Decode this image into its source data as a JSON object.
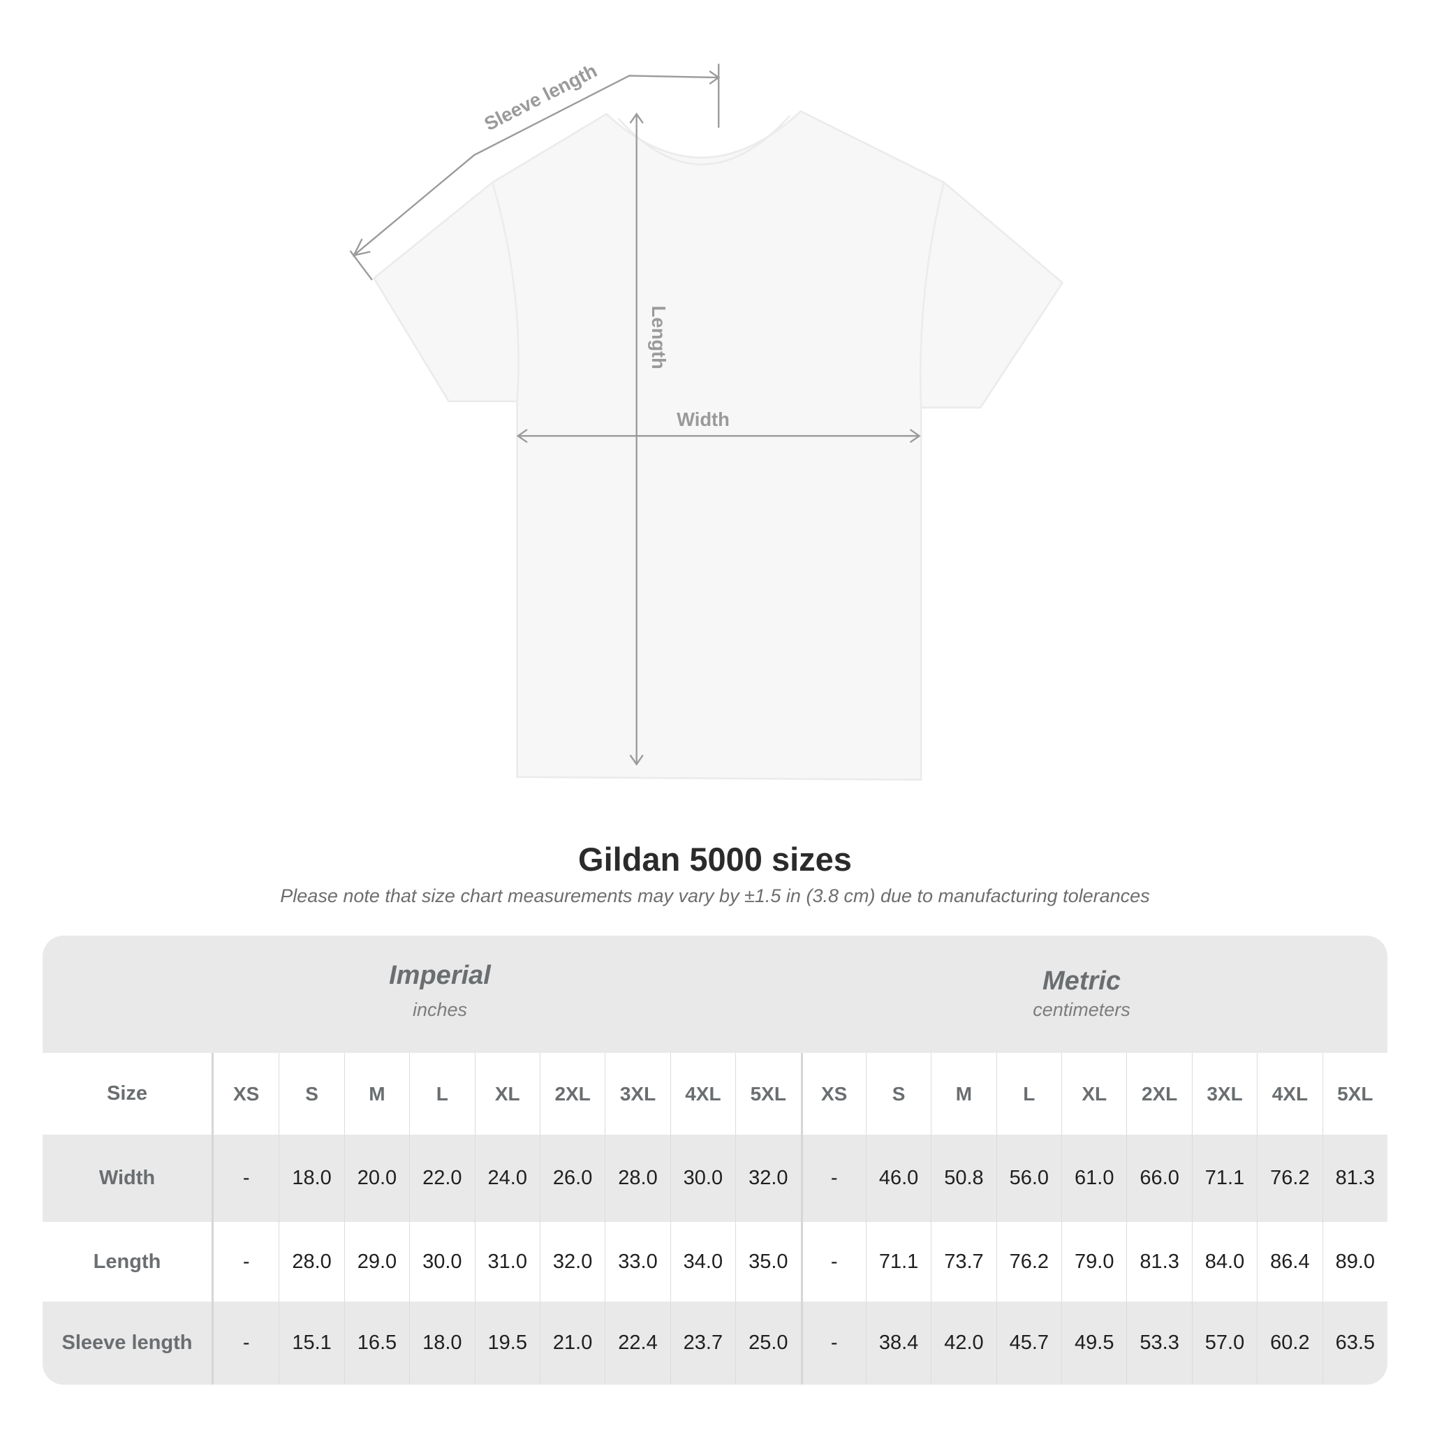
{
  "diagram": {
    "sleeve_label": "Sleeve length",
    "length_label": "Length",
    "width_label": "Width",
    "shirt_color": "#f7f7f7",
    "line_color": "#9a9a9a"
  },
  "title": "Gildan 5000 sizes",
  "subtitle": "Please note that size chart measurements may vary by ±1.5 in (3.8 cm) due to manufacturing tolerances",
  "table": {
    "imperial": {
      "name": "Imperial",
      "unit": "inches"
    },
    "metric": {
      "name": "Metric",
      "unit": "centimeters"
    },
    "size_label": "Size",
    "sizes": [
      "XS",
      "S",
      "M",
      "L",
      "XL",
      "2XL",
      "3XL",
      "4XL",
      "5XL"
    ],
    "rows": [
      {
        "label": "Width",
        "imperial": [
          "-",
          "18.0",
          "20.0",
          "22.0",
          "24.0",
          "26.0",
          "28.0",
          "30.0",
          "32.0"
        ],
        "metric": [
          "-",
          "46.0",
          "50.8",
          "56.0",
          "61.0",
          "66.0",
          "71.1",
          "76.2",
          "81.3"
        ]
      },
      {
        "label": "Length",
        "imperial": [
          "-",
          "28.0",
          "29.0",
          "30.0",
          "31.0",
          "32.0",
          "33.0",
          "34.0",
          "35.0"
        ],
        "metric": [
          "-",
          "71.1",
          "73.7",
          "76.2",
          "79.0",
          "81.3",
          "84.0",
          "86.4",
          "89.0"
        ]
      },
      {
        "label": "Sleeve length",
        "imperial": [
          "-",
          "15.1",
          "16.5",
          "18.0",
          "19.5",
          "21.0",
          "22.4",
          "23.7",
          "25.0"
        ],
        "metric": [
          "-",
          "38.4",
          "42.0",
          "45.7",
          "49.5",
          "53.3",
          "57.0",
          "60.2",
          "63.5"
        ]
      }
    ]
  }
}
